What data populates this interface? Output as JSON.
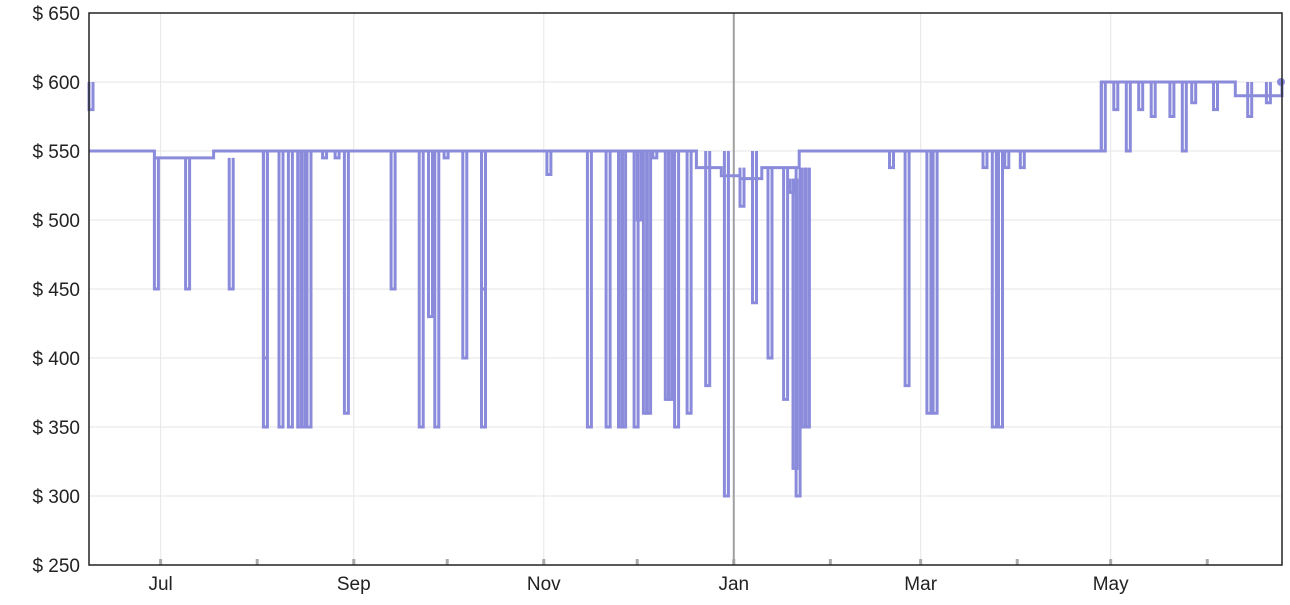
{
  "chart_data": {
    "type": "line",
    "title": "",
    "xlabel": "",
    "ylabel": "",
    "x_range": [
      "Jun 8",
      "Jun 25"
    ],
    "ylim": [
      250,
      650
    ],
    "y_ticks": [
      250,
      300,
      350,
      400,
      450,
      500,
      550,
      600,
      650
    ],
    "y_tick_labels": [
      "$ 250",
      "$ 300",
      "$ 350",
      "$ 400",
      "$ 450",
      "$ 500",
      "$ 550",
      "$ 600",
      "$ 650"
    ],
    "x_ticks": [
      "Jul 1",
      "Aug 1",
      "Sep 1",
      "Oct 1",
      "Nov 1",
      "Dec 1",
      "Jan 1",
      "Feb 1",
      "Mar 1",
      "Apr 1",
      "May 1",
      "Jun 1"
    ],
    "x_tick_labels": [
      "Jul",
      "",
      "Sep",
      "",
      "Nov",
      "",
      "Jan",
      "",
      "Mar",
      "",
      "May",
      ""
    ],
    "vertical_marker": "Jan 1",
    "grid": true,
    "line_color": "#8b8bdb",
    "series": [
      {
        "values": [
          [
            "Jun 8",
            550
          ],
          [
            "Jun 29",
            545
          ],
          [
            "Jul 18",
            550
          ],
          [
            "Aug 24",
            550
          ],
          [
            "Oct 15",
            550
          ],
          [
            "Nov 15",
            550
          ],
          [
            "Dec 15",
            550
          ],
          [
            "Dec 20",
            538
          ],
          [
            "Dec 28",
            532
          ],
          [
            "Jan 3",
            530
          ],
          [
            "Jan 10",
            538
          ],
          [
            "Jan 15",
            538
          ],
          [
            "Jan 22",
            550
          ],
          [
            "Feb 15",
            550
          ],
          [
            "Mar 15",
            550
          ],
          [
            "Apr 15",
            550
          ],
          [
            "Apr 27",
            550
          ],
          [
            "Apr 28",
            600
          ],
          [
            "May 20",
            600
          ],
          [
            "Jun 10",
            590
          ],
          [
            "Jun 25",
            600
          ]
        ]
      }
    ],
    "dips": [
      [
        "Jun 29",
        545,
        450
      ],
      [
        "Jul 9",
        545,
        450
      ],
      [
        "Jul 23",
        545,
        450
      ],
      [
        "Aug 3",
        550,
        400
      ],
      [
        "Aug 3",
        550,
        350
      ],
      [
        "Aug 8",
        550,
        350
      ],
      [
        "Aug 11",
        550,
        350
      ],
      [
        "Aug 14",
        550,
        350
      ],
      [
        "Aug 15",
        550,
        350
      ],
      [
        "Aug 17",
        550,
        350
      ],
      [
        "Aug 22",
        550,
        545
      ],
      [
        "Aug 26",
        550,
        545
      ],
      [
        "Aug 29",
        550,
        360
      ],
      [
        "Sep 13",
        550,
        450
      ],
      [
        "Sep 22",
        550,
        350
      ],
      [
        "Sep 25",
        550,
        430
      ],
      [
        "Sep 27",
        550,
        350
      ],
      [
        "Sep 30",
        550,
        545
      ],
      [
        "Oct 6",
        550,
        400
      ],
      [
        "Oct 12",
        550,
        350
      ],
      [
        "Oct 12",
        550,
        450
      ],
      [
        "Nov 2",
        550,
        533
      ],
      [
        "Nov 15",
        550,
        350
      ],
      [
        "Nov 21",
        550,
        350
      ],
      [
        "Nov 25",
        550,
        350
      ],
      [
        "Nov 26",
        550,
        350
      ],
      [
        "Nov 30",
        550,
        350
      ],
      [
        "Dec 1",
        550,
        500
      ],
      [
        "Dec 3",
        550,
        360
      ],
      [
        "Dec 4",
        550,
        360
      ],
      [
        "Dec 6",
        550,
        545
      ],
      [
        "Dec 10",
        550,
        370
      ],
      [
        "Dec 11",
        550,
        370
      ],
      [
        "Dec 13",
        550,
        350
      ],
      [
        "Dec 17",
        550,
        360
      ],
      [
        "Dec 23",
        550,
        380
      ],
      [
        "Dec 29",
        550,
        300
      ],
      [
        "Jan 3",
        538,
        510
      ],
      [
        "Jan 7",
        550,
        440
      ],
      [
        "Jan 12",
        538,
        400
      ],
      [
        "Jan 17",
        538,
        370
      ],
      [
        "Jan 19",
        530,
        520
      ],
      [
        "Jan 20",
        530,
        320
      ],
      [
        "Jan 21",
        538,
        300
      ],
      [
        "Jan 23",
        538,
        350
      ],
      [
        "Jan 24",
        538,
        350
      ],
      [
        "Feb 20",
        550,
        538
      ],
      [
        "Feb 25",
        550,
        380
      ],
      [
        "Mar 3",
        550,
        360
      ],
      [
        "Mar 5",
        550,
        360
      ],
      [
        "Mar 21",
        550,
        538
      ],
      [
        "Mar 24",
        550,
        350
      ],
      [
        "Mar 26",
        550,
        350
      ],
      [
        "Mar 28",
        550,
        538
      ],
      [
        "Apr 2",
        550,
        538
      ],
      [
        "Apr 28",
        600,
        550
      ],
      [
        "May 2",
        600,
        580
      ],
      [
        "May 6",
        600,
        550
      ],
      [
        "May 10",
        600,
        580
      ],
      [
        "May 14",
        600,
        575
      ],
      [
        "May 20",
        600,
        575
      ],
      [
        "May 24",
        600,
        550
      ],
      [
        "May 27",
        600,
        585
      ],
      [
        "Jun 3",
        600,
        580
      ],
      [
        "Jun 8",
        600,
        580
      ],
      [
        "Jun 14",
        600,
        575
      ],
      [
        "Jun 20",
        600,
        585
      ]
    ]
  }
}
